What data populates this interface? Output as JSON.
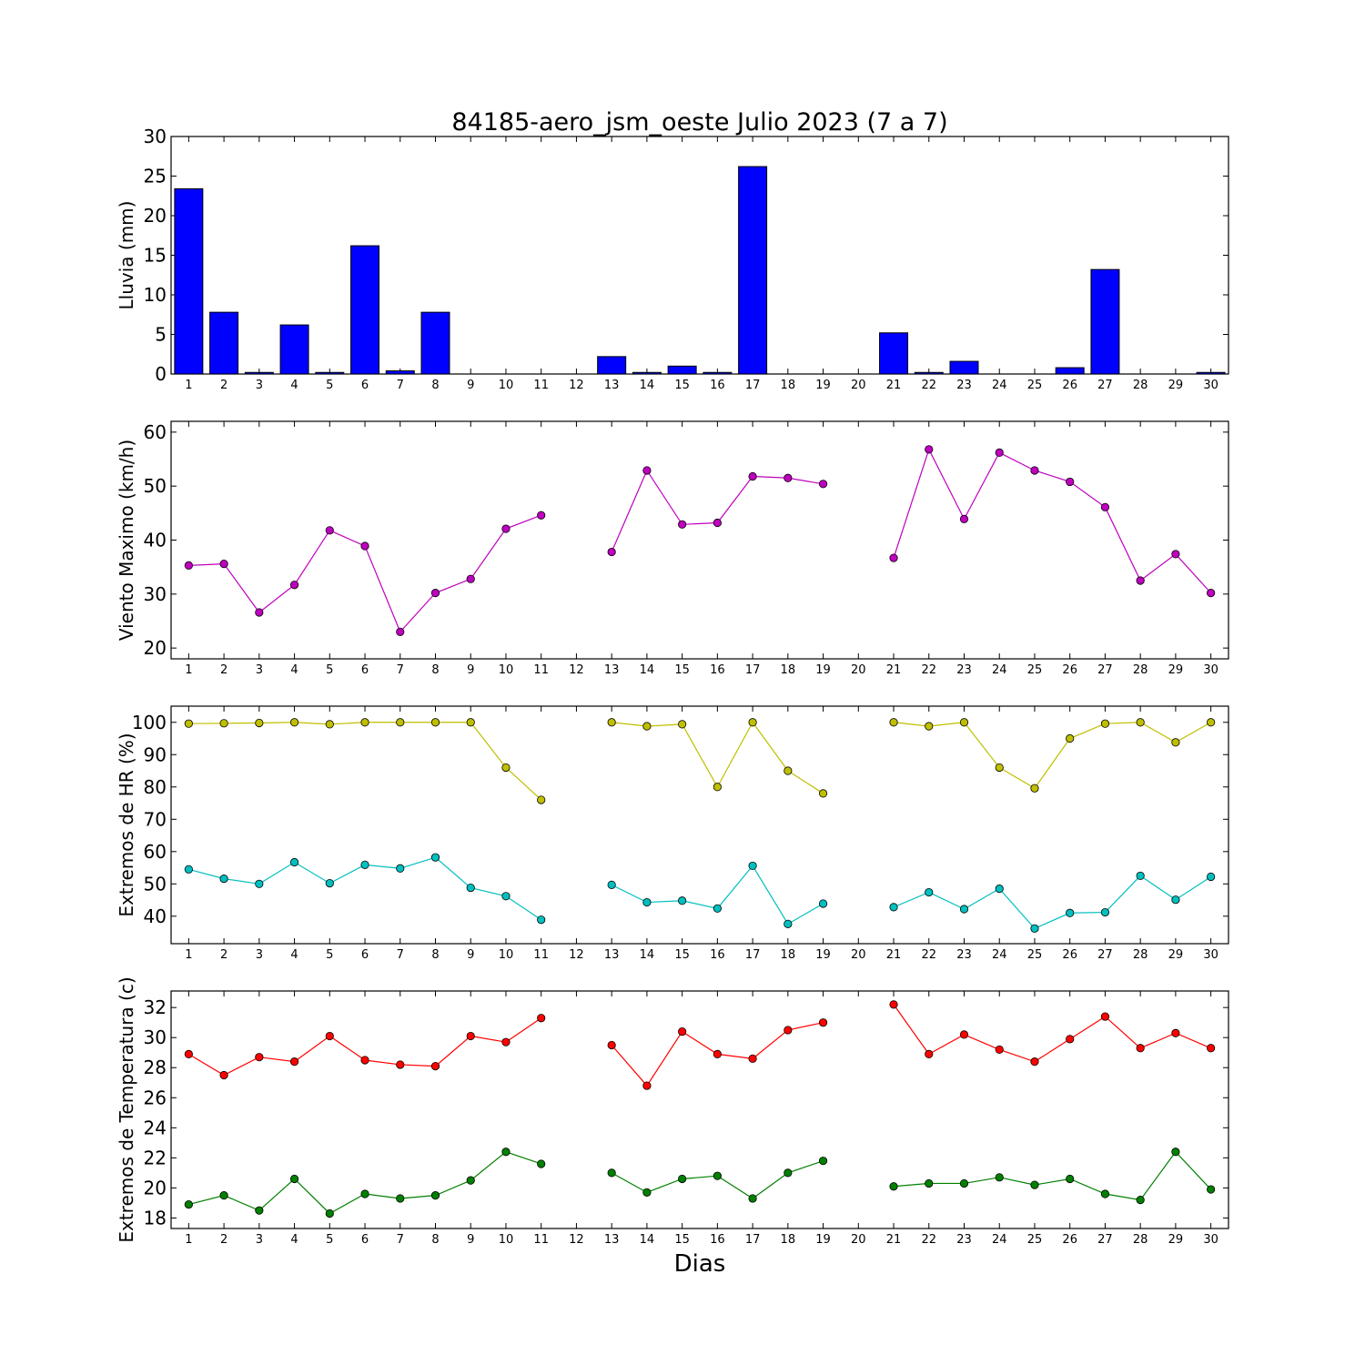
{
  "title": "84185-aero_jsm_oeste Julio 2023  (7 a 7)",
  "xlabel": "Dias",
  "chart_data": [
    {
      "type": "bar",
      "ylabel": "Lluvia (mm)",
      "categories": [
        1,
        2,
        3,
        4,
        5,
        6,
        7,
        8,
        9,
        10,
        11,
        12,
        13,
        14,
        15,
        16,
        17,
        18,
        19,
        20,
        21,
        22,
        23,
        24,
        25,
        26,
        27,
        28,
        29,
        30
      ],
      "xlim": [
        0.5,
        30.5
      ],
      "ylim": [
        0,
        30
      ],
      "yticks": [
        0,
        5,
        10,
        15,
        20,
        25,
        30
      ],
      "series": [
        {
          "color": "#0000ff",
          "values": [
            23.4,
            7.8,
            0.2,
            6.2,
            0.2,
            16.2,
            0.4,
            7.8,
            0,
            0,
            0,
            0,
            2.2,
            0.2,
            1.0,
            0.2,
            26.2,
            0,
            0,
            0,
            5.2,
            0.2,
            1.6,
            0,
            0,
            0.8,
            13.2,
            0,
            0,
            0.2
          ]
        }
      ]
    },
    {
      "type": "line",
      "ylabel": "Viento Maximo (km/h)",
      "x": [
        1,
        2,
        3,
        4,
        5,
        6,
        7,
        8,
        9,
        10,
        11,
        12,
        13,
        14,
        15,
        16,
        17,
        18,
        19,
        20,
        21,
        22,
        23,
        24,
        25,
        26,
        27,
        28,
        29,
        30
      ],
      "xlim": [
        0.5,
        30.5
      ],
      "ylim": [
        18,
        62
      ],
      "yticks": [
        20,
        30,
        40,
        50,
        60
      ],
      "series": [
        {
          "color": "#bf00bf",
          "values": [
            35.3,
            35.6,
            26.6,
            31.7,
            41.8,
            38.9,
            23.0,
            30.2,
            32.8,
            42.1,
            44.6,
            null,
            37.8,
            52.9,
            42.9,
            43.2,
            51.8,
            51.5,
            50.4,
            null,
            36.7,
            56.8,
            43.9,
            56.2,
            52.9,
            50.8,
            46.1,
            32.5,
            37.4,
            30.2
          ]
        }
      ]
    },
    {
      "type": "line",
      "ylabel": "Extremos de HR (%)",
      "x": [
        1,
        2,
        3,
        4,
        5,
        6,
        7,
        8,
        9,
        10,
        11,
        12,
        13,
        14,
        15,
        16,
        17,
        18,
        19,
        20,
        21,
        22,
        23,
        24,
        25,
        26,
        27,
        28,
        29,
        30
      ],
      "xlim": [
        0.5,
        30.5
      ],
      "ylim": [
        31.5,
        105
      ],
      "yticks": [
        40,
        50,
        60,
        70,
        80,
        90,
        100
      ],
      "series": [
        {
          "color": "#bfbf00",
          "values": [
            99.6,
            99.7,
            99.8,
            100,
            99.4,
            100,
            100,
            100,
            100,
            86,
            76,
            null,
            100,
            98.8,
            99.4,
            80,
            100,
            85,
            78,
            null,
            100,
            98.8,
            100,
            86,
            79.6,
            95,
            99.6,
            100,
            93.8,
            100
          ]
        },
        {
          "color": "#00bfbf",
          "values": [
            54.5,
            51.6,
            50.0,
            56.7,
            50.2,
            55.9,
            54.8,
            58.2,
            48.8,
            46.2,
            38.9,
            null,
            49.7,
            44.3,
            44.8,
            42.4,
            55.6,
            37.6,
            43.9,
            null,
            42.8,
            47.4,
            42.2,
            48.5,
            36.2,
            41.0,
            41.2,
            52.5,
            45.1,
            52.2
          ]
        }
      ]
    },
    {
      "type": "line",
      "ylabel": "Extremos de Temperatura (c)",
      "x": [
        1,
        2,
        3,
        4,
        5,
        6,
        7,
        8,
        9,
        10,
        11,
        12,
        13,
        14,
        15,
        16,
        17,
        18,
        19,
        20,
        21,
        22,
        23,
        24,
        25,
        26,
        27,
        28,
        29,
        30
      ],
      "xlim": [
        0.5,
        30.5
      ],
      "ylim": [
        17.3,
        33.1
      ],
      "yticks": [
        18,
        20,
        22,
        24,
        26,
        28,
        30,
        32
      ],
      "series": [
        {
          "color": "#ff0000",
          "values": [
            28.9,
            27.5,
            28.7,
            28.4,
            30.1,
            28.5,
            28.2,
            28.1,
            30.1,
            29.7,
            31.3,
            null,
            29.5,
            26.8,
            30.4,
            28.9,
            28.6,
            30.5,
            31.0,
            null,
            32.2,
            28.9,
            30.2,
            29.2,
            28.4,
            29.9,
            31.4,
            29.3,
            30.3,
            29.3
          ]
        },
        {
          "color": "#008000",
          "values": [
            18.9,
            19.5,
            18.5,
            20.6,
            18.3,
            19.6,
            19.3,
            19.5,
            20.5,
            22.4,
            21.6,
            null,
            21.0,
            19.7,
            20.6,
            20.8,
            19.3,
            21.0,
            21.8,
            null,
            20.1,
            20.3,
            20.3,
            20.7,
            20.2,
            20.6,
            19.6,
            19.2,
            22.4,
            19.9
          ]
        }
      ]
    }
  ]
}
